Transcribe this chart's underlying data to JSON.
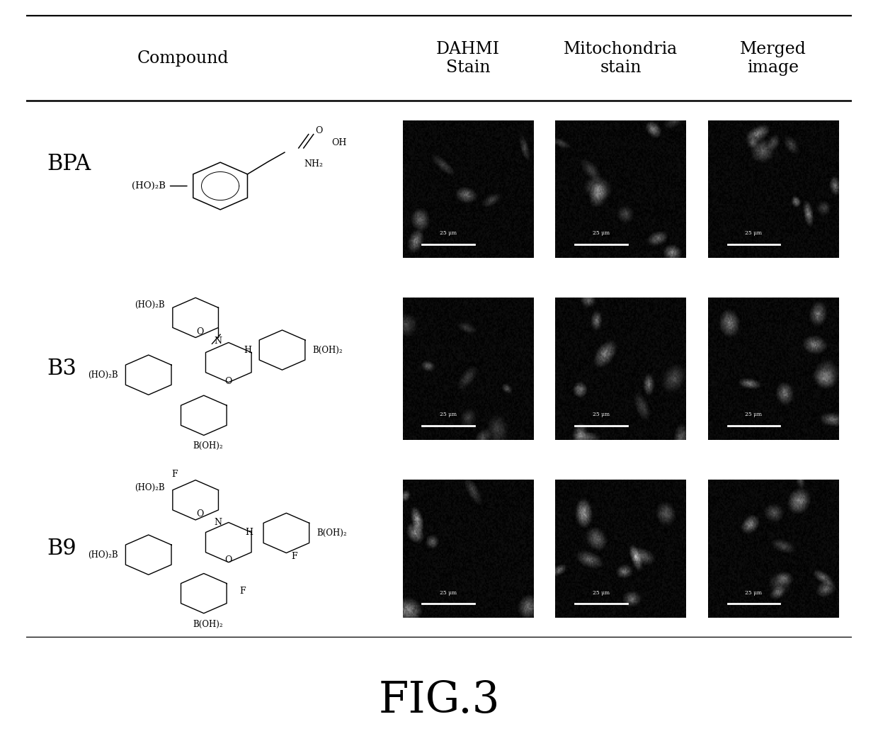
{
  "title": "FIG.3",
  "header_col1": "Compound",
  "header_col2": "DAHMI\nStain",
  "header_col3": "Mitochondria\nstain",
  "header_col4": "Merged\nimage",
  "row_labels": [
    "BPA",
    "B3",
    "B9"
  ],
  "bg_color": "#ffffff",
  "text_color": "#000000",
  "figure_width": 12.4,
  "figure_height": 10.46,
  "scale_bar_text": "25 μm"
}
